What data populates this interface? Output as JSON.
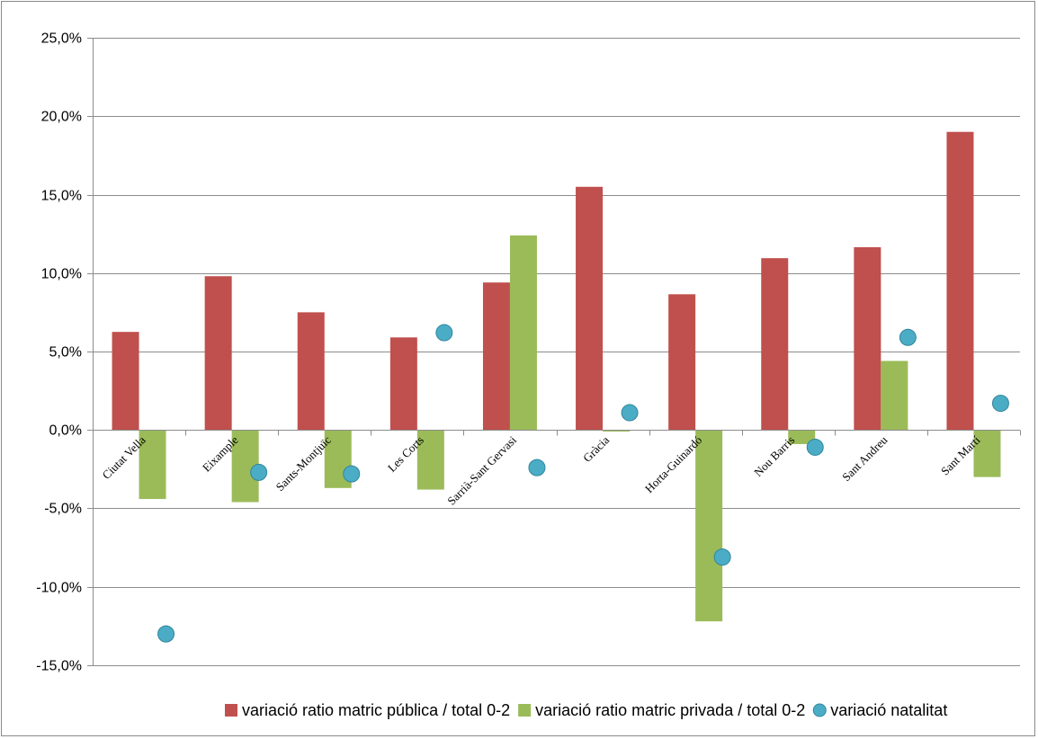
{
  "chart_data": {
    "type": "bar",
    "title": "",
    "xlabel": "",
    "ylabel": "",
    "ylim": [
      -0.15,
      0.25
    ],
    "yticks": [
      "25,0%",
      "20,0%",
      "15,0%",
      "10,0%",
      "5,0%",
      "0,0%",
      "-5,0%",
      "-10,0%",
      "-15,0%"
    ],
    "yticks_values": [
      0.25,
      0.2,
      0.15,
      0.1,
      0.05,
      0.0,
      -0.05,
      -0.1,
      -0.15
    ],
    "grid": true,
    "legend_position": "bottom",
    "categories": [
      "Ciutat Vella",
      "Eixample",
      "Sants-Montjuïc",
      "Les Corts",
      "Sarrià-Sant Gervasi",
      "Gràcia",
      "Horta-Guinardó",
      "Nou Barris",
      "Sant Andreu",
      "Sant Martí"
    ],
    "series": [
      {
        "name": "variació ratio matric pública / total 0-2",
        "type": "bar",
        "color": "#c0504d",
        "values": [
          0.0625,
          0.098,
          0.075,
          0.059,
          0.094,
          0.155,
          0.0865,
          0.1095,
          0.1165,
          0.19
        ]
      },
      {
        "name": "variació ratio matric privada / total 0-2",
        "type": "bar",
        "color": "#9bbb59",
        "values": [
          -0.044,
          -0.046,
          -0.037,
          -0.038,
          0.124,
          -0.001,
          -0.122,
          -0.009,
          0.044,
          -0.03
        ]
      },
      {
        "name": "variació natalitat",
        "type": "scatter",
        "color": "#4bacc6",
        "values": [
          -0.13,
          -0.027,
          -0.028,
          0.062,
          -0.024,
          0.011,
          -0.081,
          -0.011,
          0.059,
          0.017
        ]
      }
    ]
  }
}
